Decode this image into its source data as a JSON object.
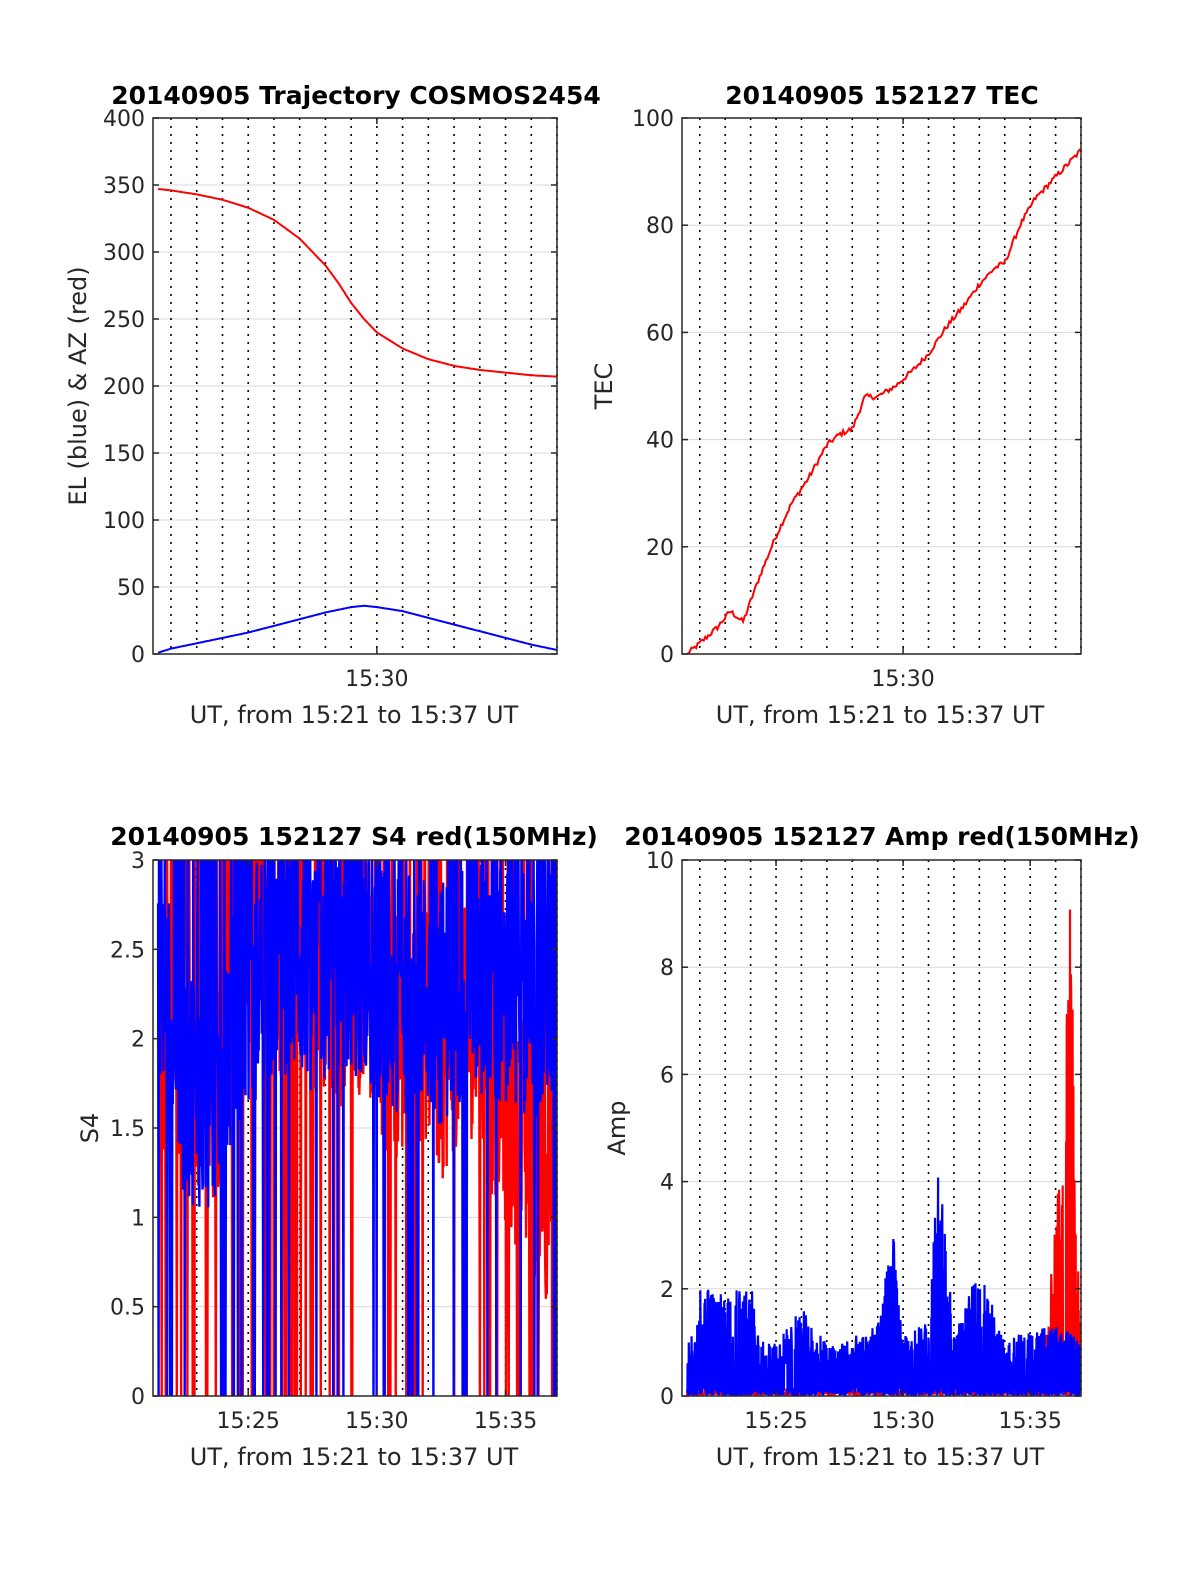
{
  "colors": {
    "red": "#ff0000",
    "blue": "#0000ff",
    "axis": "#262626",
    "grid": "#d9d9d9",
    "vgrid": "#000000"
  },
  "chart_data": [
    {
      "id": "trajectory",
      "type": "line",
      "title": "20140905 Trajectory COSMOS2454",
      "xlabel": "UT, from 15:21 to 15:37 UT",
      "ylabel": "EL (blue) & AZ (red)",
      "xlim_min": [
        21.3,
        37.0
      ],
      "ylim": [
        0,
        400
      ],
      "yticks": [
        "0",
        "50",
        "100",
        "150",
        "200",
        "250",
        "300",
        "350",
        "400"
      ],
      "xticks": [
        {
          "value": 30,
          "label": "15:30"
        }
      ],
      "grid": "dotted vertical lines every 1 minute, light horizontal lines",
      "series": [
        {
          "color": "red",
          "x_min": [
            21.5,
            22,
            23,
            24,
            25,
            26,
            27,
            28,
            28.5,
            29,
            29.5,
            30,
            31,
            32,
            33,
            34,
            35,
            36,
            37
          ],
          "y": [
            347,
            346,
            343,
            339,
            333,
            324,
            310,
            290,
            277,
            262,
            250,
            240,
            228,
            220,
            215,
            212,
            210,
            208,
            207
          ]
        },
        {
          "color": "blue",
          "x_min": [
            21.5,
            22,
            23,
            24,
            25,
            26,
            27,
            28,
            29,
            29.5,
            30,
            31,
            32,
            33,
            34,
            35,
            36,
            37
          ],
          "y": [
            1,
            4,
            8,
            12,
            16,
            21,
            26,
            31,
            35,
            36,
            35,
            32,
            27,
            22,
            17,
            12,
            7,
            3
          ]
        }
      ]
    },
    {
      "id": "tec",
      "type": "line",
      "title": "20140905 152127 TEC",
      "xlabel": "UT, from 15:21 to 15:37 UT",
      "ylabel": "TEC",
      "xlim_min": [
        21.3,
        37.0
      ],
      "ylim": [
        0,
        100
      ],
      "yticks": [
        "0",
        "20",
        "40",
        "60",
        "80",
        "100"
      ],
      "xticks": [
        {
          "value": 30,
          "label": "15:30"
        }
      ],
      "grid": "dotted vertical lines every 1 minute, light horizontal lines",
      "series": [
        {
          "color": "red",
          "x_min": [
            21.5,
            22,
            22.7,
            23.2,
            23.7,
            24.4,
            25,
            25.6,
            26.3,
            27,
            27.5,
            28,
            28.5,
            29,
            29.7,
            30.4,
            31,
            31.7,
            32.4,
            33,
            33.6,
            34,
            34.6,
            35.2,
            35.8,
            36.4,
            37
          ],
          "y": [
            0,
            2,
            5,
            8,
            6,
            15,
            22,
            28,
            33,
            39,
            41,
            42,
            48,
            48,
            50,
            53,
            56,
            61,
            65,
            69,
            72,
            73,
            80,
            85,
            88,
            91,
            94
          ]
        }
      ]
    },
    {
      "id": "s4",
      "type": "line",
      "title": "20140905 152127 S4 red(150MHz)",
      "xlabel": "UT, from 15:21 to 15:37 UT",
      "ylabel": "S4",
      "xlim_min": [
        21.3,
        37.0
      ],
      "ylim": [
        0,
        3
      ],
      "yticks": [
        "0",
        "0.5",
        "1",
        "1.5",
        "2",
        "2.5",
        "3"
      ],
      "xticks": [
        {
          "value": 25,
          "label": "15:25"
        },
        {
          "value": 30,
          "label": "15:30"
        },
        {
          "value": 35,
          "label": "15:35"
        }
      ],
      "grid": "dotted vertical lines every 1 minute, light horizontal lines",
      "series": [
        {
          "color": "red",
          "noise": "dense",
          "x_min": [
            21.5,
            22.5,
            23.5,
            24.5,
            25.5,
            26.5,
            27.5,
            28.5,
            29.5,
            30.5,
            31.5,
            32.5,
            33.5,
            34.5,
            35.5,
            36.5,
            37
          ],
          "y": [
            1.9,
            2.0,
            1.7,
            2.2,
            2.4,
            2.5,
            2.4,
            2.3,
            2.4,
            2.0,
            2.1,
            1.9,
            2.2,
            1.8,
            1.5,
            1.2,
            1.4
          ]
        },
        {
          "color": "blue",
          "noise": "dense",
          "x_min": [
            21.5,
            22.5,
            23.5,
            24.5,
            25.5,
            26.5,
            27.5,
            28.5,
            29.5,
            30.5,
            31.5,
            32.5,
            33.5,
            34.5,
            35.5,
            36.5,
            37
          ],
          "y": [
            2.3,
            1.8,
            1.7,
            2.1,
            2.4,
            2.5,
            2.4,
            2.4,
            2.5,
            2.2,
            2.3,
            2.2,
            2.4,
            2.3,
            2.3,
            2.2,
            2.3
          ]
        }
      ]
    },
    {
      "id": "amp",
      "type": "line",
      "title": "20140905 152127 Amp red(150MHz)",
      "xlabel": "UT, from 15:21 to 15:37 UT",
      "ylabel": "Amp",
      "xlim_min": [
        21.3,
        37.0
      ],
      "ylim": [
        0,
        10
      ],
      "yticks": [
        "0",
        "2",
        "4",
        "6",
        "8",
        "10"
      ],
      "xticks": [
        {
          "value": 25,
          "label": "15:25"
        },
        {
          "value": 30,
          "label": "15:30"
        },
        {
          "value": 35,
          "label": "15:35"
        }
      ],
      "grid": "dotted vertical lines every 1 minute, light horizontal lines",
      "series": [
        {
          "color": "red",
          "noise": "dense",
          "x_min": [
            21.5,
            35.5,
            35.7,
            36.0,
            36.2,
            36.4,
            36.6,
            36.8,
            37
          ],
          "y": [
            0.05,
            0.1,
            1.5,
            3.0,
            4.5,
            6.0,
            8.7,
            3.0,
            1.2
          ]
        },
        {
          "color": "blue",
          "noise": "dense",
          "x_min": [
            21.5,
            22.0,
            23.0,
            24.0,
            24.3,
            25.0,
            26.0,
            27.0,
            28.0,
            29.0,
            29.6,
            30.0,
            31.0,
            31.4,
            32.0,
            33.0,
            34.0,
            35.0,
            36.0,
            37.0
          ],
          "y": [
            0.8,
            1.8,
            1.9,
            2.0,
            1.0,
            0.9,
            1.5,
            0.9,
            1.0,
            1.2,
            2.8,
            1.0,
            1.3,
            4.1,
            1.0,
            2.2,
            1.0,
            1.1,
            1.2,
            1.0
          ]
        }
      ]
    }
  ]
}
